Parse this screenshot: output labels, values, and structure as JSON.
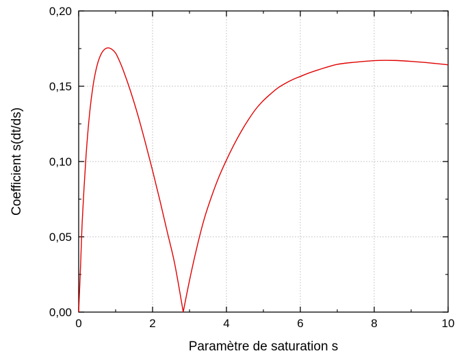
{
  "chart_data": {
    "type": "line",
    "xlabel": "Paramètre de saturation s",
    "ylabel": "Coefficient s(dt/ds)",
    "xlim": [
      0,
      10
    ],
    "ylim": [
      0,
      0.2
    ],
    "x_ticks": [
      0,
      2,
      4,
      6,
      8,
      10
    ],
    "x_tick_labels": [
      "0",
      "2",
      "4",
      "6",
      "8",
      "10"
    ],
    "y_ticks": [
      0,
      0.05,
      0.1,
      0.15,
      0.2
    ],
    "y_tick_labels": [
      "0,00",
      "0,05",
      "0,10",
      "0,15",
      "0,20"
    ],
    "grid": true,
    "series": [
      {
        "color": "#e00000",
        "x": [
          0,
          0.05,
          0.1,
          0.2,
          0.3,
          0.4,
          0.5,
          0.6,
          0.7,
          0.8,
          0.9,
          1.0,
          1.1,
          1.2,
          1.4,
          1.6,
          1.8,
          2.0,
          2.2,
          2.4,
          2.6,
          2.83,
          3.0,
          3.2,
          3.4,
          3.6,
          3.8,
          4.0,
          4.2,
          4.4,
          4.6,
          4.8,
          5.0,
          5.2,
          5.4,
          5.6,
          5.8,
          6.0,
          6.2,
          6.5,
          7.0,
          7.5,
          8.0,
          8.3,
          8.6,
          9.0,
          9.5,
          10.0
        ],
        "y": [
          0,
          0.03,
          0.062,
          0.104,
          0.133,
          0.152,
          0.164,
          0.171,
          0.1745,
          0.1755,
          0.1745,
          0.172,
          0.167,
          0.161,
          0.147,
          0.131,
          0.113,
          0.094,
          0.074,
          0.053,
          0.032,
          0.0,
          0.021,
          0.043,
          0.062,
          0.077,
          0.09,
          0.101,
          0.111,
          0.12,
          0.128,
          0.135,
          0.1405,
          0.145,
          0.149,
          0.152,
          0.1545,
          0.1565,
          0.1585,
          0.161,
          0.1645,
          0.166,
          0.167,
          0.1672,
          0.1671,
          0.1665,
          0.1655,
          0.1642
        ]
      }
    ]
  }
}
